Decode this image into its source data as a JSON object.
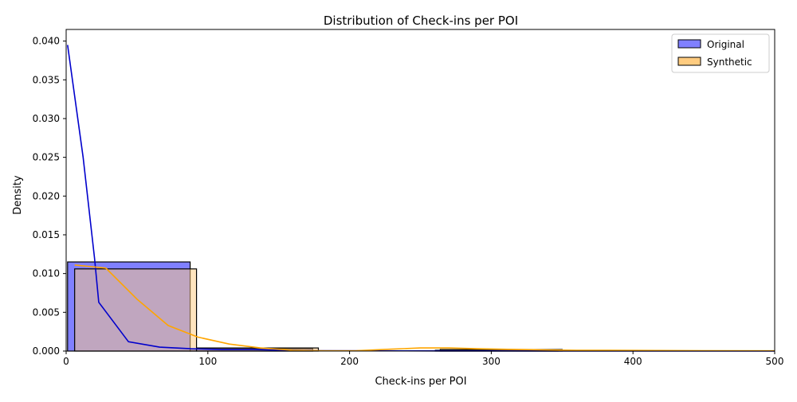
{
  "chart_data": {
    "type": "histogram",
    "title": "Distribution of Check-ins per POI",
    "xlabel": "Check-ins per POI",
    "ylabel": "Density",
    "xlim": [
      0,
      500
    ],
    "ylim": [
      0,
      0.0415
    ],
    "xticks": [
      0,
      100,
      200,
      300,
      400,
      500
    ],
    "yticks": [
      0.0,
      0.005,
      0.01,
      0.015,
      0.02,
      0.025,
      0.03,
      0.035,
      0.04
    ],
    "ytick_labels": [
      "0.000",
      "0.005",
      "0.010",
      "0.015",
      "0.020",
      "0.025",
      "0.030",
      "0.035",
      "0.040"
    ],
    "grid": false,
    "legend": {
      "position": "top-right",
      "entries": [
        "Original",
        "Synthetic"
      ]
    },
    "series": [
      {
        "name": "Original",
        "color": "#0000ff",
        "bar_color": "#8080ff",
        "kde_color": "#0000cc",
        "bins": [
          {
            "x0": 1,
            "x1": 87.5,
            "density": 0.0115
          },
          {
            "x0": 87.5,
            "x1": 174,
            "density": 0.0003
          },
          {
            "x0": 174,
            "x1": 260.5,
            "density": 0.0
          },
          {
            "x0": 260.5,
            "x1": 347,
            "density": 0.0001
          }
        ],
        "kde": {
          "x": [
            1,
            12,
            20,
            23,
            44,
            66,
            88,
            110,
            132,
            154,
            176,
            220,
            264,
            300,
            350,
            400,
            450,
            500
          ],
          "y": [
            0.0395,
            0.025,
            0.012,
            0.0063,
            0.0012,
            0.0005,
            0.0003,
            0.0002,
            0.0002,
            0.0001,
            5e-05,
            3e-05,
            2e-05,
            2e-05,
            1e-05,
            1e-05,
            1e-05,
            0.0
          ]
        }
      },
      {
        "name": "Synthetic",
        "color": "#ffa500",
        "bar_color": "#ffcc80",
        "kde_color": "#ffa500",
        "bins": [
          {
            "x0": 6,
            "x1": 92,
            "density": 0.0106
          },
          {
            "x0": 92,
            "x1": 178,
            "density": 0.0004
          },
          {
            "x0": 178,
            "x1": 264,
            "density": 0.0
          },
          {
            "x0": 264,
            "x1": 350,
            "density": 0.0002
          }
        ],
        "kde": {
          "x": [
            6,
            28,
            50,
            72,
            93,
            115,
            137,
            160,
            182,
            205,
            230,
            250,
            270,
            290,
            320,
            360,
            400,
            450,
            500
          ],
          "y": [
            0.0111,
            0.0107,
            0.0067,
            0.0033,
            0.0018,
            0.0009,
            0.0004,
            0.0001,
            3e-05,
            5e-05,
            0.00025,
            0.0004,
            0.0004,
            0.0003,
            0.0002,
            0.0001,
            8e-05,
            5e-05,
            3e-05
          ]
        }
      }
    ]
  }
}
